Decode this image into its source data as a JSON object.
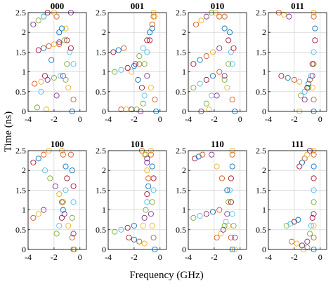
{
  "chart_data": {
    "type": "scatter",
    "xlabel": "Frequency (GHz)",
    "ylabel": "Time (ns)",
    "xlim": [
      -4,
      0.5
    ],
    "ylim": [
      0,
      2.5
    ],
    "xticks": [
      -4,
      -2,
      0
    ],
    "yticks": [
      0,
      0.5,
      1,
      1.5,
      2,
      2.5
    ],
    "grid": true,
    "marker": "open-circle",
    "colors": [
      "#0072BD",
      "#D95319",
      "#EDB120",
      "#7E2F8E",
      "#77AC30",
      "#4DBEEE",
      "#A2142F"
    ],
    "panels": [
      {
        "title": "000",
        "tracks": [
          {
            "t": [
              0.0,
              0.3,
              0.6,
              0.9,
              1.2,
              1.5,
              1.8,
              2.1,
              2.4,
              2.5
            ],
            "f": [
              -0.6,
              -0.5,
              -0.9,
              -1.3,
              -1.0,
              -0.8,
              -1.0,
              -1.4,
              -1.8,
              -2.0
            ]
          },
          {
            "t": [
              0.05,
              0.4,
              0.8,
              1.2,
              1.6,
              2.0,
              2.4
            ],
            "f": [
              -2.6,
              -1.8,
              -1.1,
              -0.5,
              -0.7,
              -1.6,
              -2.8
            ]
          },
          {
            "t": [
              0.1,
              0.5,
              0.9,
              1.3,
              1.7,
              2.1,
              2.5
            ],
            "f": [
              -3.3,
              -3.0,
              -2.7,
              -2.2,
              -1.6,
              -1.1,
              -0.7
            ]
          },
          {
            "t": [
              1.55,
              1.6,
              1.65,
              1.7,
              1.75,
              1.8
            ],
            "f": [
              -3.2,
              -2.8,
              -2.4,
              -2.0,
              -1.6,
              -1.2
            ]
          },
          {
            "t": [
              0.7,
              0.75,
              0.8,
              0.85,
              0.9
            ],
            "f": [
              -3.5,
              -3.0,
              -2.5,
              -2.0,
              -1.5
            ]
          },
          {
            "t": [
              2.2,
              2.3,
              2.4,
              2.5
            ],
            "f": [
              -3.6,
              -3.2,
              -2.8,
              -2.5
            ]
          }
        ]
      },
      {
        "title": "001",
        "tracks": [
          {
            "t": [
              0.0,
              0.3,
              0.6,
              0.9,
              1.2,
              1.5,
              1.8,
              2.1,
              2.4,
              2.5
            ],
            "f": [
              -0.3,
              -0.4,
              -0.7,
              -1.0,
              -1.2,
              -1.0,
              -0.8,
              -0.6,
              -0.5,
              -0.5
            ]
          },
          {
            "t": [
              1.0,
              1.2,
              1.4,
              1.6,
              1.8,
              2.0,
              2.2,
              2.4
            ],
            "f": [
              -2.2,
              -1.9,
              -1.6,
              -1.3,
              -1.0,
              -0.8,
              -0.6,
              -0.4
            ]
          },
          {
            "t": [
              1.0,
              1.05,
              1.1,
              1.15,
              1.2
            ],
            "f": [
              -3.5,
              -3.0,
              -2.5,
              -2.0,
              -1.6
            ]
          },
          {
            "t": [
              1.5,
              1.55,
              1.6
            ],
            "f": [
              -3.6,
              -3.2,
              -2.8
            ]
          },
          {
            "t": [
              0.05,
              0.05,
              0.05,
              0.05
            ],
            "f": [
              -3.0,
              -2.6,
              -2.2,
              -1.8
            ]
          },
          {
            "t": [
              0.0,
              0.2,
              0.4,
              0.6,
              0.8
            ],
            "f": [
              -1.5,
              -1.3,
              -1.2,
              -1.4,
              -1.7
            ]
          }
        ]
      },
      {
        "title": "010",
        "tracks": [
          {
            "t": [
              0.0,
              0.3,
              0.6,
              0.9,
              1.2,
              1.5,
              1.8,
              2.1,
              2.4,
              2.5
            ],
            "f": [
              -0.4,
              -0.6,
              -1.0,
              -1.2,
              -0.9,
              -0.7,
              -0.9,
              -1.2,
              -1.6,
              -1.9
            ]
          },
          {
            "t": [
              0.05,
              0.4,
              0.8,
              1.2,
              1.6,
              2.0,
              2.4
            ],
            "f": [
              -2.4,
              -1.8,
              -1.2,
              -0.6,
              -0.5,
              -0.8,
              -1.2
            ]
          },
          {
            "t": [
              0.6,
              0.7,
              0.8,
              0.9,
              1.0
            ],
            "f": [
              -3.6,
              -3.1,
              -2.6,
              -2.1,
              -1.6
            ]
          },
          {
            "t": [
              1.2,
              1.3,
              1.4,
              1.5,
              1.6
            ],
            "f": [
              -3.6,
              -3.1,
              -2.6,
              -2.1,
              -1.6
            ]
          },
          {
            "t": [
              2.2,
              2.3,
              2.4,
              2.5
            ],
            "f": [
              -3.4,
              -3.0,
              -2.6,
              -2.2
            ]
          },
          {
            "t": [
              0.0,
              0.2,
              0.4
            ],
            "f": [
              -3.0,
              -2.6,
              -2.2
            ]
          }
        ]
      },
      {
        "title": "011",
        "tracks": [
          {
            "t": [
              0.0,
              0.3,
              0.6,
              0.9,
              1.2,
              1.5,
              1.8,
              2.1,
              2.4,
              2.5
            ],
            "f": [
              -0.5,
              -0.5,
              -0.6,
              -0.6,
              -0.5,
              -0.5,
              -0.4,
              -0.4,
              -0.5,
              -0.5
            ]
          },
          {
            "t": [
              0.0,
              0.3,
              0.6,
              0.9,
              1.2
            ],
            "f": [
              -1.6,
              -1.2,
              -0.9,
              -0.7,
              -0.6
            ]
          },
          {
            "t": [
              0.4,
              0.5,
              0.6,
              0.7,
              0.8
            ],
            "f": [
              -1.5,
              -1.2,
              -1.0,
              -0.9,
              -0.8
            ]
          },
          {
            "t": [
              0.9,
              0.85,
              0.8,
              0.75
            ],
            "f": [
              -3.0,
              -2.5,
              -2.0,
              -1.6
            ]
          },
          {
            "t": [
              2.5,
              2.45,
              2.4
            ],
            "f": [
              -3.2,
              -2.8,
              -2.4
            ]
          }
        ]
      },
      {
        "title": "100",
        "tracks": [
          {
            "t": [
              0.0,
              0.3,
              0.6,
              0.9,
              1.2,
              1.5,
              1.8,
              2.1,
              2.4,
              2.5
            ],
            "f": [
              -0.5,
              -0.6,
              -0.9,
              -1.2,
              -1.3,
              -1.1,
              -1.0,
              -1.1,
              -1.3,
              -1.4
            ]
          },
          {
            "t": [
              0.0,
              0.4,
              0.8,
              1.2,
              1.6,
              2.0,
              2.4
            ],
            "f": [
              -0.4,
              -0.5,
              -0.6,
              -0.5,
              -0.5,
              -0.6,
              -0.7
            ]
          },
          {
            "t": [
              0.4,
              0.6,
              0.8,
              1.0,
              1.2,
              1.4,
              1.6,
              1.8,
              2.0
            ],
            "f": [
              -1.8,
              -1.6,
              -1.4,
              -1.3,
              -1.4,
              -1.6,
              -1.9,
              -2.3,
              -2.7
            ]
          },
          {
            "t": [
              2.2,
              2.3,
              2.4,
              2.5
            ],
            "f": [
              -3.6,
              -3.2,
              -2.8,
              -2.4
            ]
          },
          {
            "t": [
              0.8,
              0.9,
              1.0
            ],
            "f": [
              -3.6,
              -3.2,
              -2.8
            ]
          }
        ]
      },
      {
        "title": "101",
        "tracks": [
          {
            "t": [
              0.0,
              0.3,
              0.6,
              0.9,
              1.2,
              1.5,
              1.8,
              2.1,
              2.4,
              2.5
            ],
            "f": [
              -0.4,
              -0.5,
              -0.6,
              -0.7,
              -0.6,
              -0.5,
              -0.5,
              -0.6,
              -0.7,
              -0.7
            ]
          },
          {
            "t": [
              0.6,
              0.8,
              1.0,
              1.2,
              1.4,
              1.6,
              1.8,
              2.0,
              2.2,
              2.4
            ],
            "f": [
              -1.3,
              -1.2,
              -1.1,
              -1.0,
              -1.0,
              -0.9,
              -0.9,
              -1.0,
              -1.0,
              -1.1
            ]
          },
          {
            "t": [
              0.45,
              0.5,
              0.55,
              0.6
            ],
            "f": [
              -3.5,
              -3.0,
              -2.5,
              -2.0
            ]
          },
          {
            "t": [
              0.3,
              0.25,
              0.2,
              0.15
            ],
            "f": [
              -2.4,
              -2.0,
              -1.6,
              -1.2
            ]
          },
          {
            "t": [
              2.5,
              2.4,
              2.3
            ],
            "f": [
              -1.4,
              -1.2,
              -1.0
            ]
          }
        ]
      },
      {
        "title": "110",
        "tracks": [
          {
            "t": [
              0.0,
              0.3,
              0.6,
              0.9,
              1.2,
              1.5,
              1.8,
              2.1,
              2.4,
              2.5
            ],
            "f": [
              -0.6,
              -0.7,
              -0.9,
              -1.0,
              -0.9,
              -0.8,
              -0.7,
              -0.6,
              -0.6,
              -0.6
            ]
          },
          {
            "t": [
              0.0,
              0.3,
              0.6,
              0.9,
              1.2,
              1.5,
              1.8,
              2.1,
              2.4
            ],
            "f": [
              -0.4,
              -0.4,
              -0.5,
              -0.6,
              -0.7,
              -1.0,
              -1.4,
              -1.8,
              -2.2
            ]
          },
          {
            "t": [
              0.8,
              0.85,
              0.9,
              0.95,
              1.0
            ],
            "f": [
              -3.6,
              -3.1,
              -2.6,
              -2.1,
              -1.6
            ]
          },
          {
            "t": [
              2.3,
              2.35,
              2.4
            ],
            "f": [
              -3.5,
              -3.2,
              -2.9
            ]
          },
          {
            "t": [
              0.3,
              0.4,
              0.5,
              0.6,
              0.7
            ],
            "f": [
              -1.8,
              -1.5,
              -1.3,
              -1.2,
              -1.1
            ]
          }
        ]
      },
      {
        "title": "111",
        "tracks": [
          {
            "t": [
              0.0,
              0.3,
              0.6,
              0.9,
              1.2,
              1.5,
              1.8,
              2.1,
              2.4,
              2.5
            ],
            "f": [
              -0.5,
              -0.5,
              -0.5,
              -0.5,
              -0.5,
              -0.5,
              -0.5,
              -0.5,
              -0.5,
              -0.5
            ]
          },
          {
            "t": [
              0.0,
              0.2,
              0.4,
              0.6,
              0.8
            ],
            "f": [
              -1.3,
              -1.0,
              -0.8,
              -0.7,
              -0.6
            ]
          },
          {
            "t": [
              0.6,
              0.65,
              0.7,
              0.75
            ],
            "f": [
              -2.6,
              -2.3,
              -2.0,
              -1.7
            ]
          },
          {
            "t": [
              2.1,
              2.2,
              2.3,
              2.4,
              2.5
            ],
            "f": [
              -1.6,
              -1.4,
              -1.2,
              -1.0,
              -0.8
            ]
          },
          {
            "t": [
              0.2,
              0.15,
              0.1,
              0.05
            ],
            "f": [
              -2.2,
              -1.8,
              -1.4,
              -1.0
            ]
          }
        ]
      }
    ]
  }
}
